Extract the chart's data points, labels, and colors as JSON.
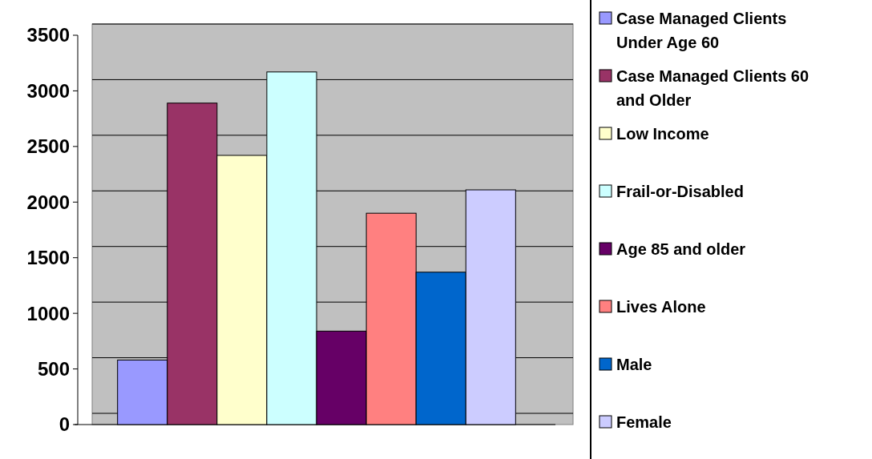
{
  "chart_data": {
    "type": "bar",
    "categories": [
      null
    ],
    "series": [
      {
        "name": "Case Managed Clients Under Age 60",
        "color": "#9999ff",
        "values": [
          580
        ]
      },
      {
        "name": "Case Managed Clients 60 and Older",
        "color": "#993366",
        "values": [
          2890
        ]
      },
      {
        "name": "Low Income",
        "color": "#ffffcc",
        "values": [
          2420
        ]
      },
      {
        "name": "Frail-or-Disabled",
        "color": "#ccffff",
        "values": [
          3170
        ]
      },
      {
        "name": "Age 85 and older",
        "color": "#660066",
        "values": [
          840
        ]
      },
      {
        "name": "Lives Alone",
        "color": "#ff8080",
        "values": [
          1900
        ]
      },
      {
        "name": "Male",
        "color": "#0066cc",
        "values": [
          1370
        ]
      },
      {
        "name": "Female",
        "color": "#ccccff",
        "values": [
          2110
        ]
      }
    ],
    "ylim": [
      0,
      3500
    ],
    "yticks": [
      0,
      500,
      1000,
      1500,
      2000,
      2500,
      3000,
      3500
    ],
    "grid": "y",
    "legend": "right"
  }
}
